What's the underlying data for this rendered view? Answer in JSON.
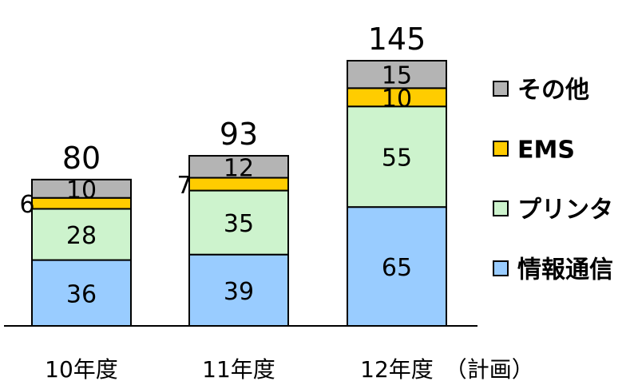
{
  "chart_data": {
    "type": "bar",
    "stacked": true,
    "categories": [
      "10年度",
      "11年度",
      "12年度　（計画）"
    ],
    "series": [
      {
        "name": "情報通信",
        "values": [
          36,
          39,
          65
        ],
        "color": "#99ccff"
      },
      {
        "name": "プリンタ",
        "values": [
          28,
          35,
          55
        ],
        "color": "#cdf3cd"
      },
      {
        "name": "EMS",
        "values": [
          6,
          7,
          10
        ],
        "color": "#ffcc00"
      },
      {
        "name": "その他",
        "values": [
          10,
          12,
          15
        ],
        "color": "#b4b4b4"
      }
    ],
    "totals": [
      80,
      93,
      145
    ],
    "legend_order": [
      "その他",
      "EMS",
      "プリンタ",
      "情報通信"
    ],
    "legend_position": "right",
    "ylim": [
      0,
      145
    ],
    "grid": false
  }
}
